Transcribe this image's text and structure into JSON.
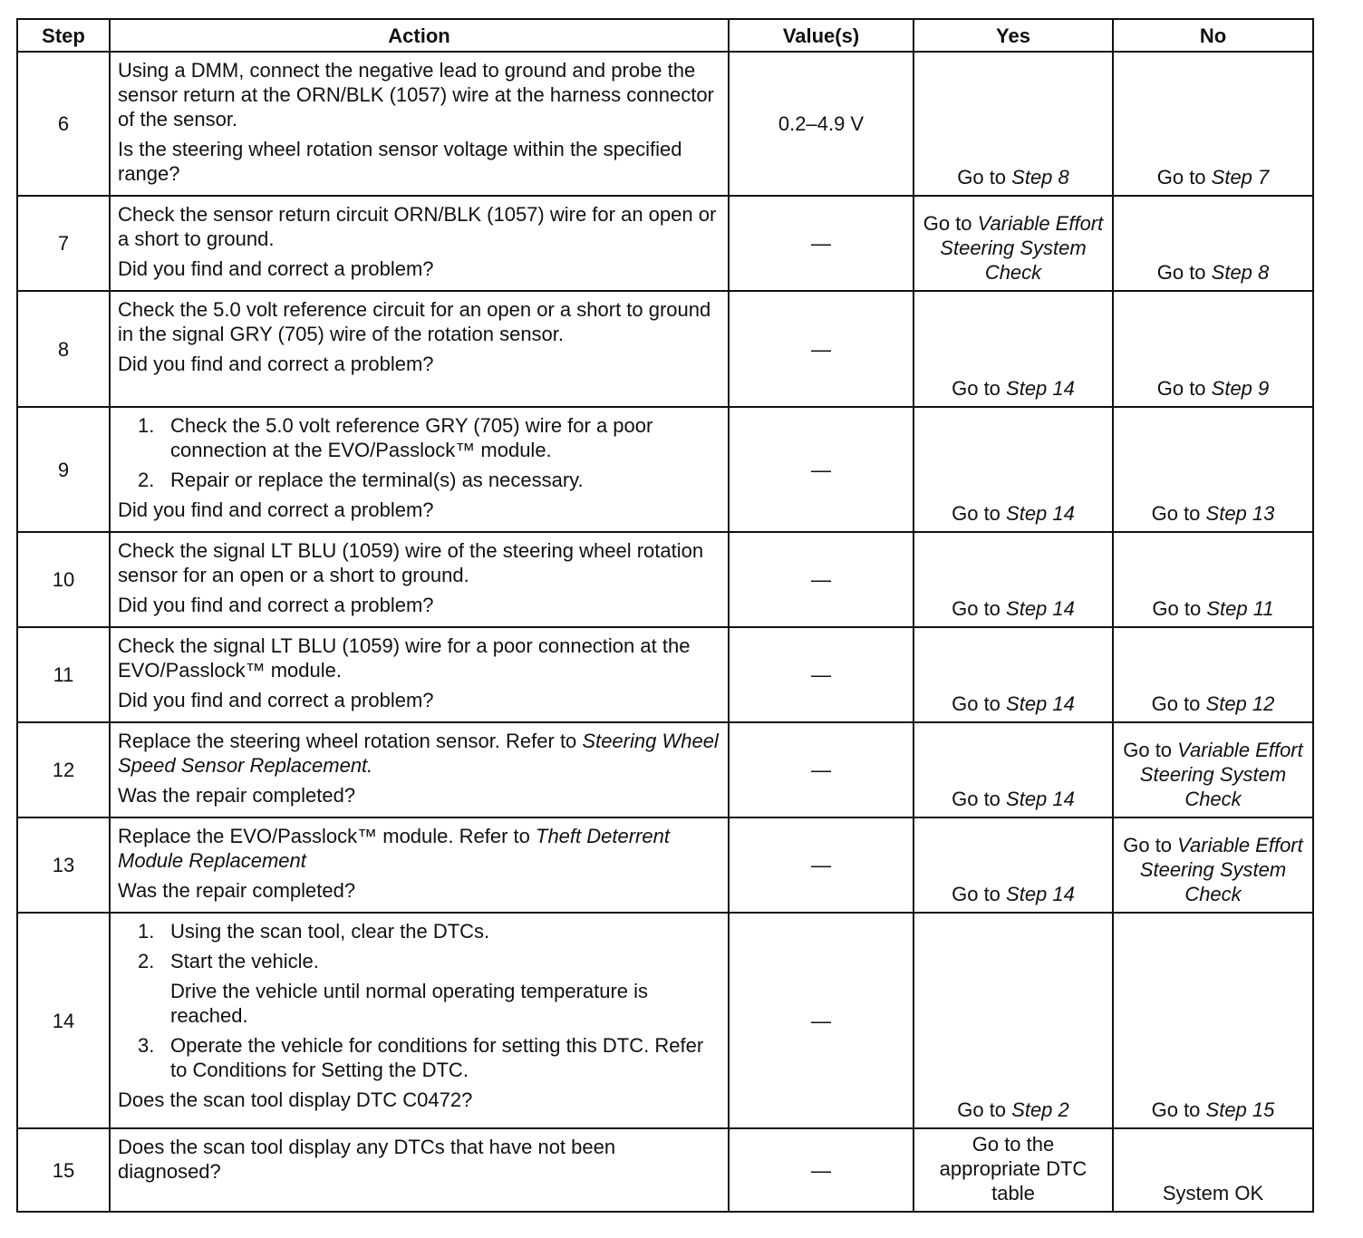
{
  "headers": {
    "step": "Step",
    "action": "Action",
    "value": "Value(s)",
    "yes": "Yes",
    "no": "No"
  },
  "rows": [
    {
      "step": "6",
      "action": [
        {
          "t": "p",
          "text": "Using a DMM, connect the negative lead to ground and probe the sensor return at the ORN/BLK (1057) wire at the harness connector of the sensor."
        },
        {
          "t": "p",
          "text": "Is the steering wheel rotation sensor voltage within the specified range?"
        }
      ],
      "value": "0.2–4.9 V",
      "yes": {
        "pre": "Go to ",
        "it": "Step 8"
      },
      "no": {
        "pre": "Go to ",
        "it": "Step 7"
      },
      "h": 157
    },
    {
      "step": "7",
      "action": [
        {
          "t": "p",
          "text": "Check the sensor return circuit ORN/BLK (1057) wire for an open or a short to ground."
        },
        {
          "t": "p",
          "text": "Did you find and correct a problem?"
        }
      ],
      "value": "—",
      "yes": {
        "pre": "Go to ",
        "it": "Variable Effort Steering System Check"
      },
      "no": {
        "pre": "Go to ",
        "it": "Step 8"
      },
      "h": 99
    },
    {
      "step": "8",
      "action": [
        {
          "t": "p",
          "text": "Check the 5.0 volt reference circuit for an open or a short to ground in the signal GRY (705) wire of the rotation sensor."
        },
        {
          "t": "p",
          "text": "Did you find and correct a problem?"
        }
      ],
      "value": "—",
      "yes": {
        "pre": "Go to ",
        "it": "Step 14"
      },
      "no": {
        "pre": "Go to ",
        "it": "Step 9"
      },
      "h": 128
    },
    {
      "step": "9",
      "action": [
        {
          "t": "li",
          "n": "1.",
          "text": "Check the 5.0 volt reference GRY (705) wire for a poor connection at the EVO/Passlock™ module."
        },
        {
          "t": "li",
          "n": "2.",
          "text": "Repair or replace the terminal(s) as necessary."
        },
        {
          "t": "p",
          "text": "Did you find and correct a problem?"
        }
      ],
      "value": "—",
      "yes": {
        "pre": "Go to ",
        "it": "Step 14"
      },
      "no": {
        "pre": "Go to ",
        "it": "Step 13"
      },
      "h": 135
    },
    {
      "step": "10",
      "action": [
        {
          "t": "p",
          "text": "Check the signal LT BLU (1059) wire of the steering wheel rotation sensor for an open or a short to ground."
        },
        {
          "t": "p",
          "text": "Did you find and correct a problem?"
        }
      ],
      "value": "—",
      "yes": {
        "pre": "Go to ",
        "it": "Step 14"
      },
      "no": {
        "pre": "Go to ",
        "it": "Step 11"
      },
      "h": 103
    },
    {
      "step": "11",
      "action": [
        {
          "t": "p",
          "text": "Check the signal LT BLU (1059) wire for a poor connection at the EVO/Passlock™ module."
        },
        {
          "t": "p",
          "text": "Did you find and correct a problem?"
        }
      ],
      "value": "—",
      "yes": {
        "pre": "Go to ",
        "it": "Step 14"
      },
      "no": {
        "pre": "Go to ",
        "it": "Step 12"
      },
      "h": 103
    },
    {
      "step": "12",
      "action": [
        {
          "t": "p",
          "text": "Replace the steering wheel rotation sensor. Refer to ",
          "it": "Steering Wheel Speed Sensor Replacement."
        },
        {
          "t": "p",
          "text": "Was the repair completed?"
        }
      ],
      "value": "—",
      "yes": {
        "pre": "Go to ",
        "it": "Step 14"
      },
      "no": {
        "pre": "Go to ",
        "it": "Variable Effort Steering System Check"
      },
      "h": 102
    },
    {
      "step": "13",
      "action": [
        {
          "t": "p",
          "text": "Replace the EVO/Passlock™ module. Refer to ",
          "it": "Theft Deterrent Module Replacement"
        },
        {
          "t": "p",
          "text": "Was the repair completed?"
        }
      ],
      "value": "—",
      "yes": {
        "pre": "Go to ",
        "it": "Step 14"
      },
      "no": {
        "pre": "Go to ",
        "it": "Variable Effort Steering System Check"
      },
      "h": 99
    },
    {
      "step": "14",
      "action": [
        {
          "t": "li",
          "n": "1.",
          "text": "Using the scan tool, clear the DTCs."
        },
        {
          "t": "li",
          "n": "2.",
          "text": "Start the vehicle."
        },
        {
          "t": "ind",
          "text": "Drive the vehicle until normal operating temperature is reached."
        },
        {
          "t": "li",
          "n": "3.",
          "text": "Operate the vehicle for conditions for setting this DTC. Refer to Conditions for Setting the DTC."
        },
        {
          "t": "p",
          "text": "Does the scan tool display DTC C0472?"
        }
      ],
      "value": "—",
      "yes": {
        "pre": "Go to ",
        "it": "Step 2"
      },
      "no": {
        "pre": "Go to ",
        "it": "Step 15"
      },
      "h": 238
    },
    {
      "step": "15",
      "action": [
        {
          "t": "p",
          "text": "Does the scan tool display any DTCs that have not been diagnosed?"
        }
      ],
      "value": "—",
      "yes": {
        "pre": "Go to the appropriate DTC table",
        "it": ""
      },
      "no": {
        "pre": "System OK",
        "it": ""
      },
      "h": 92
    }
  ]
}
